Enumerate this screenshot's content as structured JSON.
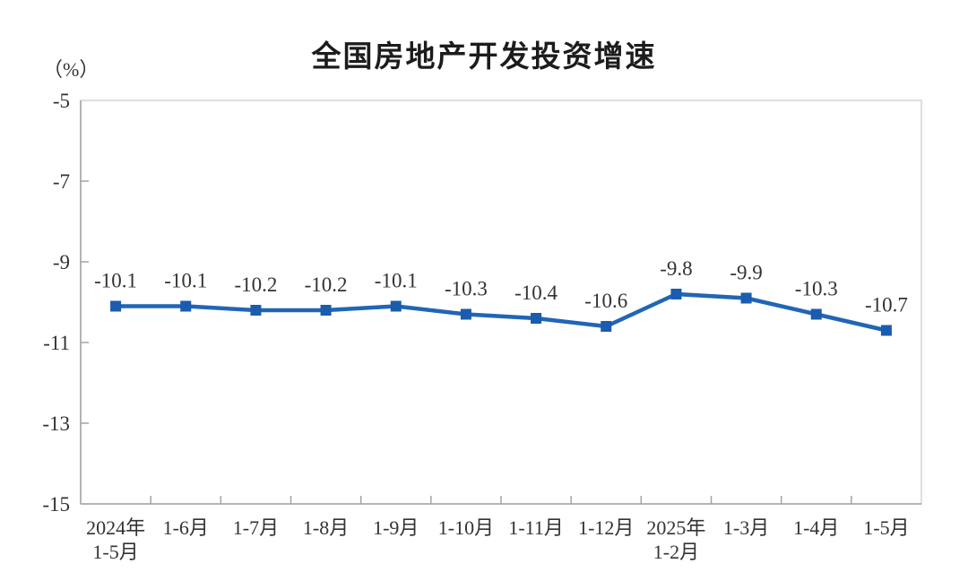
{
  "chart_data": {
    "type": "line",
    "title": "全国房地产开发投资增速",
    "ylabel": "（%）",
    "xlabel": "",
    "categories": [
      "2024年\n1-5月",
      "1-6月",
      "1-7月",
      "1-8月",
      "1-9月",
      "1-10月",
      "1-11月",
      "1-12月",
      "2025年\n1-2月",
      "1-3月",
      "1-4月",
      "1-5月"
    ],
    "series": [
      {
        "name": "房地产开发投资增速",
        "values": [
          -10.1,
          -10.1,
          -10.2,
          -10.2,
          -10.1,
          -10.3,
          -10.4,
          -10.6,
          -9.8,
          -9.9,
          -10.3,
          -10.7
        ],
        "data_labels": [
          "-10.1",
          "-10.1",
          "-10.2",
          "-10.2",
          "-10.1",
          "-10.3",
          "-10.4",
          "-10.6",
          "-9.8",
          "-9.9",
          "-10.3",
          "-10.7"
        ]
      }
    ],
    "ylim": [
      -15,
      -5
    ],
    "yticks": [
      -5,
      -7,
      -9,
      -11,
      -13,
      -15
    ],
    "grid": false,
    "legend": "none",
    "marker": "square",
    "colors": {
      "line": "#2166b5",
      "marker": "#1a5cad",
      "label_text": "#333333",
      "axis": "#a3a3a3",
      "frame": "#d4d4d4",
      "title_text": "#1c1c1c",
      "background": "#ffffff"
    }
  }
}
